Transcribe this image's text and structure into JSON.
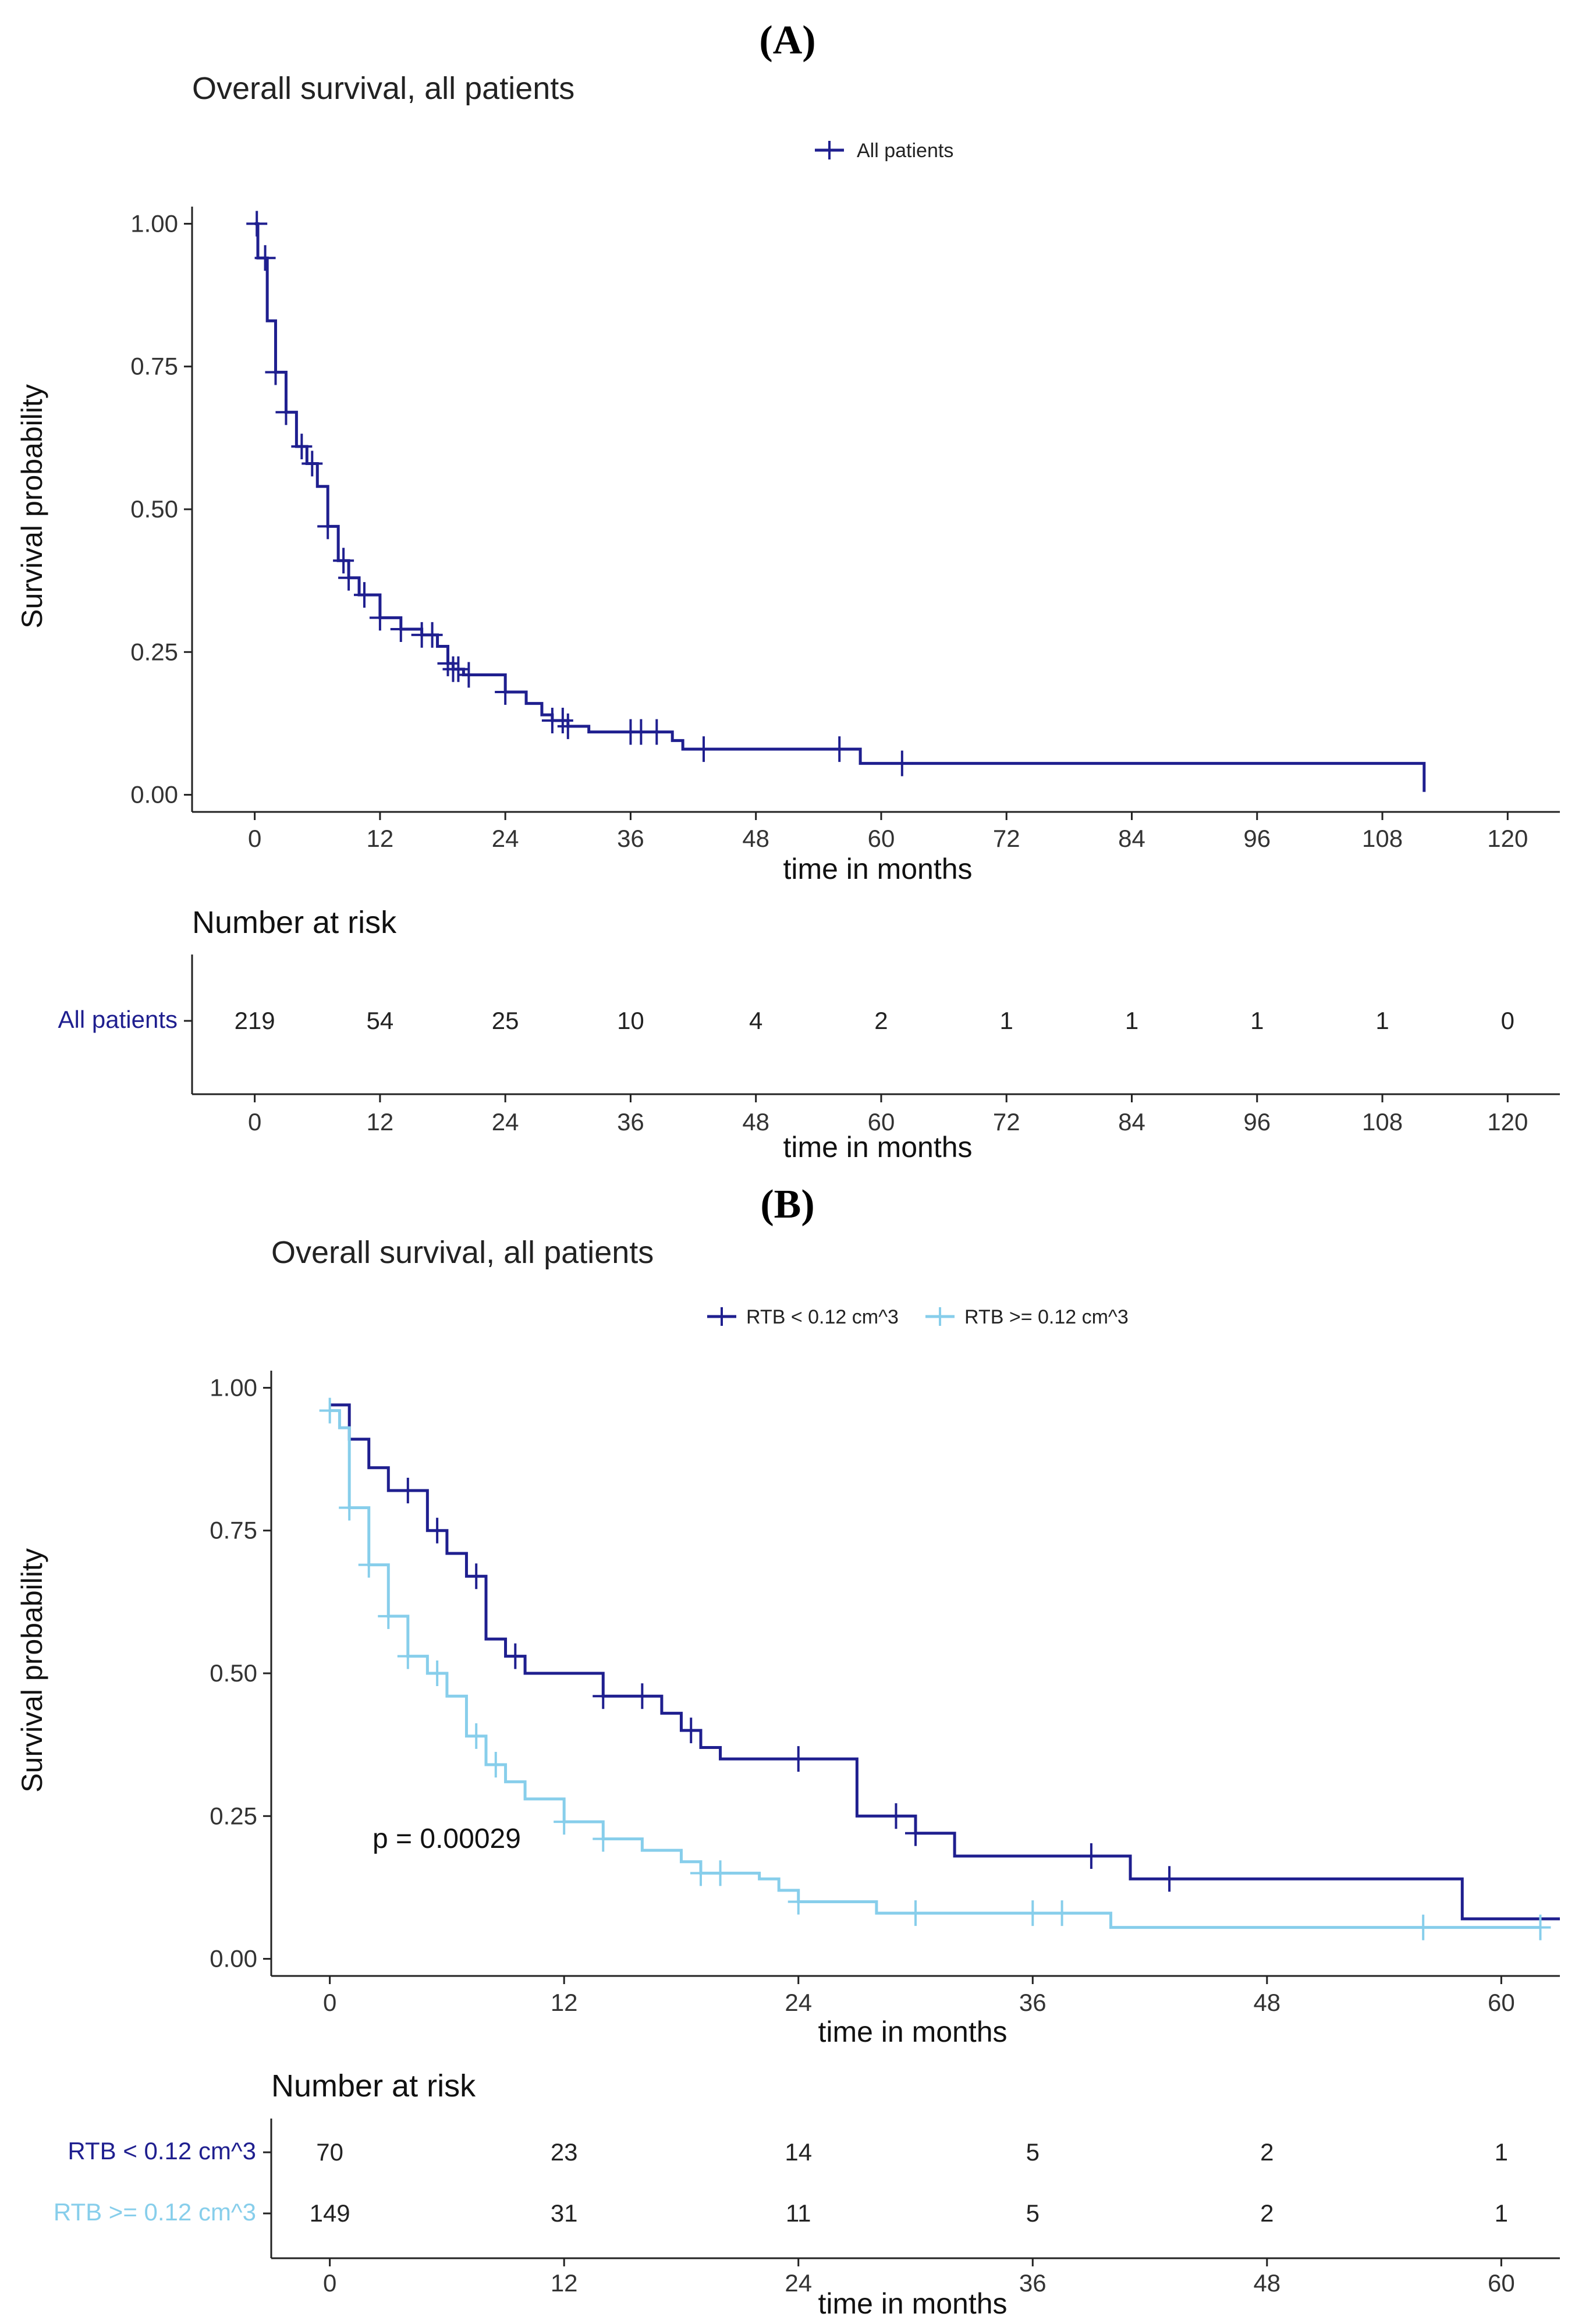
{
  "panels": [
    {
      "label": "(A)",
      "title": "Overall survival, all patients",
      "p_value": null,
      "risk_table": {
        "title": "Number at risk",
        "rows": [
          {
            "name": "All patients",
            "color": "#1f1f8f",
            "values": [
              "219",
              "54",
              "25",
              "10",
              "4",
              "2",
              "1",
              "1",
              "1",
              "1",
              "0"
            ]
          }
        ]
      }
    },
    {
      "label": "(B)",
      "title": "Overall survival, all patients",
      "p_value": "p = 0.00029",
      "risk_table": {
        "title": "Number at risk",
        "rows": [
          {
            "name": "RTB < 0.12 cm^3",
            "color": "#1f1f8f",
            "values": [
              "70",
              "23",
              "14",
              "5",
              "2",
              "1"
            ]
          },
          {
            "name": "RTB >= 0.12 cm^3",
            "color": "#87ceeb",
            "values": [
              "149",
              "31",
              "11",
              "5",
              "2",
              "1"
            ]
          }
        ]
      }
    }
  ],
  "chart_data": [
    {
      "type": "line",
      "subtype": "kaplan-meier step",
      "title": "Overall survival, all patients",
      "xlabel": "time in months",
      "ylabel": "Survival probability",
      "xlim": [
        -6,
        125
      ],
      "ylim": [
        -0.03,
        1.03
      ],
      "xticks": [
        0,
        12,
        24,
        36,
        48,
        60,
        72,
        84,
        96,
        108,
        120
      ],
      "yticks": [
        0,
        0.25,
        0.5,
        0.75,
        1.0
      ],
      "ytick_labels": [
        "0.00",
        "0.25",
        "0.50",
        "0.75",
        "1.00"
      ],
      "legend": {
        "placement": "top",
        "entries": [
          "All patients"
        ]
      },
      "grid": false,
      "series": [
        {
          "name": "All patients",
          "color": "#1f1f8f",
          "steps": [
            [
              0,
              1.0
            ],
            [
              0.3,
              0.94
            ],
            [
              1.2,
              0.83
            ],
            [
              2.0,
              0.74
            ],
            [
              3.0,
              0.67
            ],
            [
              4.0,
              0.61
            ],
            [
              5.0,
              0.58
            ],
            [
              6.0,
              0.54
            ],
            [
              7.0,
              0.47
            ],
            [
              8.0,
              0.41
            ],
            [
              9.0,
              0.38
            ],
            [
              10.0,
              0.35
            ],
            [
              12.0,
              0.31
            ],
            [
              14.0,
              0.29
            ],
            [
              16.0,
              0.28
            ],
            [
              17.5,
              0.26
            ],
            [
              18.5,
              0.23
            ],
            [
              19.0,
              0.22
            ],
            [
              20.0,
              0.21
            ],
            [
              24.0,
              0.18
            ],
            [
              26.0,
              0.16
            ],
            [
              27.5,
              0.14
            ],
            [
              28.5,
              0.13
            ],
            [
              30.0,
              0.12
            ],
            [
              32.0,
              0.11
            ],
            [
              40.0,
              0.095
            ],
            [
              41.0,
              0.08
            ],
            [
              58.0,
              0.055
            ],
            [
              112.0,
              0.005
            ]
          ],
          "end": 112,
          "censor_times": [
            0.2,
            1.0,
            2.0,
            3.0,
            4.5,
            5.5,
            7.0,
            8.5,
            9.0,
            10.5,
            12.0,
            14.0,
            16.0,
            17.0,
            18.5,
            19.0,
            19.5,
            20.5,
            24.0,
            28.5,
            29.5,
            30.0,
            36.0,
            37.0,
            38.5,
            43.0,
            56.0,
            62.0
          ]
        }
      ]
    },
    {
      "type": "line",
      "subtype": "kaplan-meier step",
      "title": "Overall survival, all patients",
      "xlabel": "time in months",
      "ylabel": "Survival probability",
      "xlim": [
        -3,
        63
      ],
      "ylim": [
        -0.03,
        1.03
      ],
      "xticks": [
        0,
        12,
        24,
        36,
        48,
        60
      ],
      "yticks": [
        0,
        0.25,
        0.5,
        0.75,
        1.0
      ],
      "ytick_labels": [
        "0.00",
        "0.25",
        "0.50",
        "0.75",
        "1.00"
      ],
      "legend": {
        "placement": "top",
        "entries": [
          "RTB < 0.12 cm^3",
          "RTB >= 0.12 cm^3"
        ]
      },
      "grid": false,
      "annotation": "p = 0.00029",
      "series": [
        {
          "name": "RTB < 0.12 cm^3",
          "color": "#1f1f8f",
          "steps": [
            [
              0,
              0.97
            ],
            [
              1.0,
              0.91
            ],
            [
              2.0,
              0.86
            ],
            [
              3.0,
              0.82
            ],
            [
              5.0,
              0.75
            ],
            [
              6.0,
              0.71
            ],
            [
              7.0,
              0.67
            ],
            [
              8.0,
              0.56
            ],
            [
              9.0,
              0.53
            ],
            [
              10.0,
              0.5
            ],
            [
              14.0,
              0.46
            ],
            [
              17.0,
              0.43
            ],
            [
              18.0,
              0.4
            ],
            [
              19.0,
              0.37
            ],
            [
              20.0,
              0.35
            ],
            [
              27.0,
              0.25
            ],
            [
              30.0,
              0.22
            ],
            [
              32.0,
              0.18
            ],
            [
              41.0,
              0.14
            ],
            [
              58.0,
              0.07
            ]
          ],
          "end": 63,
          "censor_times": [
            4.0,
            5.5,
            7.5,
            9.5,
            14.0,
            16.0,
            18.5,
            24.0,
            29.0,
            30.0,
            39.0,
            43.0
          ]
        },
        {
          "name": "RTB >= 0.12 cm^3",
          "color": "#87ceeb",
          "steps": [
            [
              0,
              0.96
            ],
            [
              0.5,
              0.93
            ],
            [
              1.0,
              0.79
            ],
            [
              2.0,
              0.69
            ],
            [
              3.0,
              0.6
            ],
            [
              4.0,
              0.53
            ],
            [
              5.0,
              0.5
            ],
            [
              6.0,
              0.46
            ],
            [
              7.0,
              0.39
            ],
            [
              8.0,
              0.34
            ],
            [
              9.0,
              0.31
            ],
            [
              10.0,
              0.28
            ],
            [
              12.0,
              0.24
            ],
            [
              14.0,
              0.21
            ],
            [
              16.0,
              0.19
            ],
            [
              18.0,
              0.17
            ],
            [
              19.0,
              0.15
            ],
            [
              22.0,
              0.14
            ],
            [
              23.0,
              0.12
            ],
            [
              24.0,
              0.1
            ],
            [
              28.0,
              0.08
            ],
            [
              40.0,
              0.055
            ]
          ],
          "end": 62,
          "censor_times": [
            0.0,
            1.0,
            2.0,
            3.0,
            4.0,
            5.5,
            7.5,
            8.5,
            12.0,
            14.0,
            19.0,
            20.0,
            24.0,
            30.0,
            36.0,
            37.5,
            56.0,
            62.0
          ]
        }
      ]
    }
  ]
}
